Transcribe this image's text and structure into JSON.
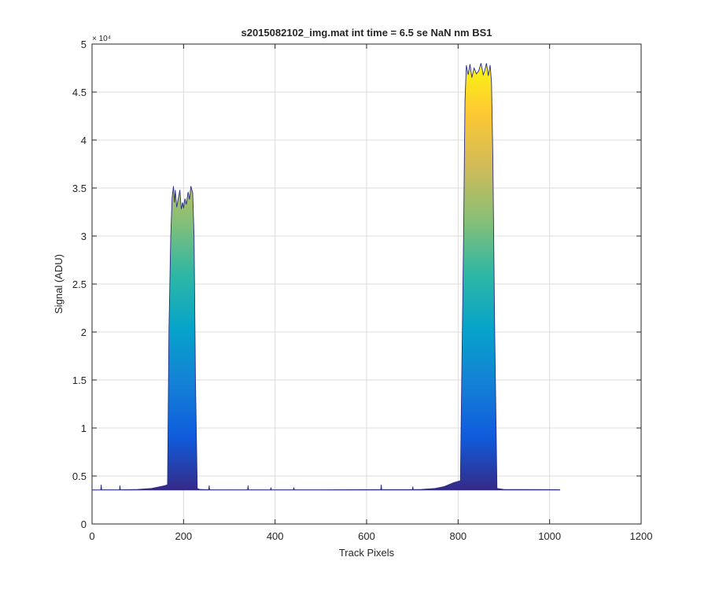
{
  "chart_data": {
    "type": "area",
    "title": "s2015082102_img.mat int time = 6.5 se  NaN nm BS1",
    "xlabel": "Track Pixels",
    "ylabel": "Signal (ADU)",
    "xlim": [
      0,
      1200
    ],
    "ylim": [
      0,
      50000
    ],
    "xticks": [
      0,
      200,
      400,
      600,
      800,
      1000,
      1200
    ],
    "xtick_labels": [
      "0",
      "200",
      "400",
      "600",
      "800",
      "1000",
      "1200"
    ],
    "yticks": [
      0,
      5000,
      10000,
      15000,
      20000,
      25000,
      30000,
      35000,
      40000,
      45000,
      50000
    ],
    "ytick_labels": [
      "0",
      "0.5",
      "1",
      "1.5",
      "2",
      "2.5",
      "3",
      "3.5",
      "4",
      "4.5",
      "5"
    ],
    "y_exponent_label": "× 10⁴",
    "grid": true,
    "colormap": "parula",
    "colormap_stops": [
      "#352a87",
      "#0f5cdd",
      "#1481d6",
      "#06a4ca",
      "#2eb7a4",
      "#87bf77",
      "#d1bb59",
      "#fec832",
      "#f9fb0e"
    ],
    "line_color": "#2a2d85",
    "series": [
      {
        "x": [
          1,
          10,
          19,
          20,
          21,
          30,
          60,
          61,
          62,
          100,
          130,
          150,
          160,
          165,
          168,
          172,
          175,
          178,
          180,
          182,
          185,
          188,
          192,
          195,
          198,
          200,
          203,
          206,
          210,
          213,
          216,
          220,
          223,
          226,
          230,
          235,
          255,
          256,
          257,
          300,
          340,
          341,
          342,
          350,
          390,
          391,
          392,
          400,
          440,
          441,
          442,
          500,
          550,
          600,
          631,
          632,
          633,
          650,
          700,
          701,
          702,
          720,
          750,
          770,
          790,
          805,
          812,
          815,
          818,
          822,
          826,
          830,
          835,
          840,
          845,
          850,
          855,
          858,
          862,
          866,
          870,
          873,
          876,
          880,
          885,
          900,
          1000,
          1023
        ],
        "y": [
          3550,
          3550,
          3560,
          4100,
          3560,
          3560,
          3560,
          4000,
          3560,
          3600,
          3700,
          3900,
          4000,
          4100,
          20000,
          30000,
          34000,
          35200,
          33500,
          34800,
          33000,
          33800,
          34800,
          32800,
          33500,
          32900,
          33900,
          33300,
          34600,
          33800,
          35200,
          34500,
          30000,
          15000,
          3700,
          3600,
          3570,
          4000,
          3570,
          3560,
          3570,
          4000,
          3570,
          3560,
          3560,
          3800,
          3560,
          3560,
          3560,
          3800,
          3560,
          3560,
          3570,
          3580,
          3580,
          4100,
          3580,
          3580,
          3580,
          3900,
          3580,
          3600,
          3700,
          3900,
          4300,
          4500,
          30000,
          44000,
          47800,
          46800,
          47900,
          46500,
          47500,
          46900,
          47200,
          48000,
          46800,
          47200,
          48000,
          46700,
          47800,
          46000,
          38000,
          20000,
          3700,
          3600,
          3580,
          3570
        ]
      }
    ]
  }
}
